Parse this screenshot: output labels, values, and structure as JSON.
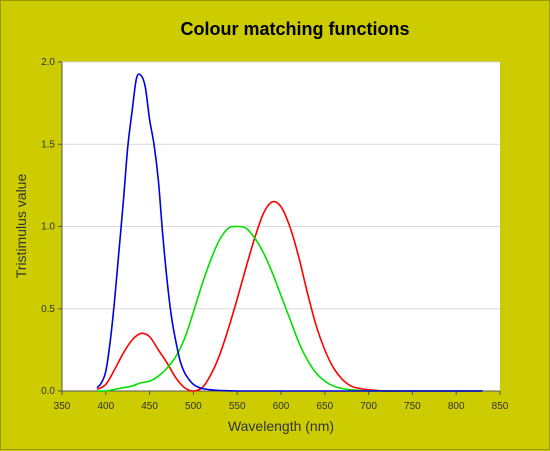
{
  "chart_data": {
    "type": "line",
    "title": "Colour matching functions",
    "xlabel": "Wavelength (nm)",
    "ylabel": "Tristimulus value",
    "xlim": [
      350,
      850
    ],
    "ylim": [
      0,
      2.0
    ],
    "x_ticks": [
      "350",
      "400",
      "450",
      "500",
      "550",
      "600",
      "650",
      "700",
      "750",
      "800",
      "850"
    ],
    "y_ticks": [
      "0.0",
      "0.5",
      "1.0",
      "1.5",
      "2.0"
    ],
    "grid": "horizontal",
    "legend": "none",
    "colors": {
      "background": "#cccc00",
      "plot_background": "#ffffff",
      "grid": "#d9d9d9",
      "axis": "#555555"
    },
    "series": [
      {
        "color": "#ff0000",
        "x": [
          390,
          400,
          410,
          420,
          430,
          440,
          450,
          460,
          470,
          480,
          490,
          500,
          510,
          520,
          530,
          540,
          550,
          560,
          570,
          580,
          590,
          600,
          610,
          620,
          630,
          640,
          650,
          660,
          670,
          680,
          690,
          700,
          710,
          720,
          730,
          750,
          800,
          830
        ],
        "values": [
          0.01,
          0.04,
          0.13,
          0.23,
          0.31,
          0.35,
          0.33,
          0.25,
          0.17,
          0.08,
          0.02,
          0.0,
          0.02,
          0.1,
          0.22,
          0.38,
          0.56,
          0.75,
          0.93,
          1.08,
          1.15,
          1.12,
          1.0,
          0.82,
          0.6,
          0.4,
          0.25,
          0.14,
          0.07,
          0.03,
          0.015,
          0.007,
          0.003,
          0.001,
          0.0,
          0.0,
          0.0,
          0.0
        ]
      },
      {
        "color": "#00e000",
        "x": [
          390,
          400,
          410,
          420,
          430,
          440,
          450,
          460,
          470,
          480,
          490,
          500,
          510,
          520,
          530,
          540,
          550,
          560,
          570,
          580,
          590,
          600,
          610,
          620,
          630,
          640,
          650,
          660,
          670,
          680,
          690,
          700,
          710,
          720,
          730,
          750,
          800,
          830
        ],
        "values": [
          0.0,
          0.0,
          0.01,
          0.02,
          0.03,
          0.05,
          0.06,
          0.09,
          0.14,
          0.21,
          0.32,
          0.48,
          0.65,
          0.8,
          0.92,
          0.99,
          1.0,
          0.99,
          0.93,
          0.84,
          0.72,
          0.58,
          0.44,
          0.3,
          0.19,
          0.11,
          0.06,
          0.03,
          0.015,
          0.007,
          0.003,
          0.001,
          0.0,
          0.0,
          0.0,
          0.0,
          0.0,
          0.0
        ]
      },
      {
        "color": "#0000e0",
        "x": [
          390,
          395,
          400,
          405,
          410,
          415,
          420,
          425,
          430,
          435,
          440,
          445,
          450,
          455,
          460,
          465,
          470,
          475,
          480,
          485,
          490,
          495,
          500,
          505,
          510,
          520,
          530,
          550,
          600,
          700,
          830
        ],
        "values": [
          0.02,
          0.05,
          0.12,
          0.3,
          0.55,
          0.85,
          1.15,
          1.48,
          1.7,
          1.9,
          1.92,
          1.85,
          1.65,
          1.5,
          1.28,
          0.95,
          0.67,
          0.45,
          0.3,
          0.18,
          0.11,
          0.07,
          0.04,
          0.025,
          0.015,
          0.007,
          0.003,
          0.0,
          0.0,
          0.0,
          0.0
        ]
      }
    ]
  }
}
